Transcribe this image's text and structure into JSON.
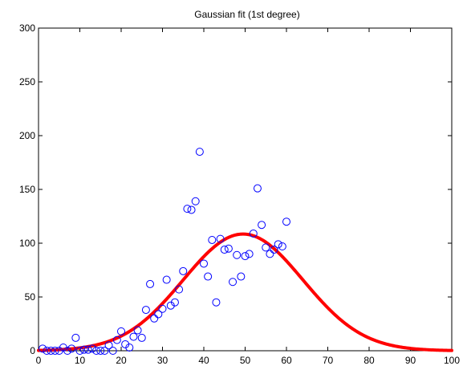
{
  "chart_data": {
    "type": "scatter",
    "title": "Gaussian fit (1st degree)",
    "xlabel": "",
    "ylabel": "",
    "xlim": [
      0,
      100
    ],
    "ylim": [
      0,
      300
    ],
    "xticks": [
      0,
      10,
      20,
      30,
      40,
      50,
      60,
      70,
      80,
      90,
      100
    ],
    "yticks": [
      0,
      50,
      100,
      150,
      200,
      250,
      300
    ],
    "grid": false,
    "legend": "none",
    "series": [
      {
        "kind": "scatter",
        "marker": "open-circle",
        "color": "#0000ff",
        "x": [
          1,
          2,
          3,
          4,
          5,
          6,
          7,
          8,
          9,
          10,
          11,
          12,
          13,
          14,
          15,
          16,
          17,
          18,
          19,
          20,
          21,
          22,
          23,
          24,
          25,
          26,
          27,
          28,
          29,
          30,
          31,
          32,
          33,
          34,
          35,
          36,
          37,
          38,
          39,
          40,
          41,
          42,
          43,
          44,
          45,
          46,
          47,
          48,
          49,
          50,
          51,
          52,
          53,
          54,
          55,
          56,
          57,
          58,
          59,
          60
        ],
        "y": [
          2,
          0,
          0,
          0,
          0,
          3,
          0,
          2,
          12,
          0,
          1,
          1,
          2,
          0,
          0,
          0,
          5,
          0,
          10,
          18,
          6,
          3,
          13,
          19,
          12,
          38,
          62,
          30,
          34,
          39,
          66,
          42,
          45,
          57,
          74,
          132,
          131,
          139,
          185,
          81,
          69,
          103,
          45,
          104,
          94,
          95,
          64,
          89,
          69,
          88,
          90,
          109,
          151,
          117,
          96,
          90,
          94,
          99,
          97,
          120
        ]
      },
      {
        "kind": "line",
        "fit": "gauss1",
        "color": "#ff0000",
        "a1": 108.5,
        "b1": 49.5,
        "c1": 20.5,
        "x_range": [
          0,
          100
        ]
      }
    ]
  }
}
